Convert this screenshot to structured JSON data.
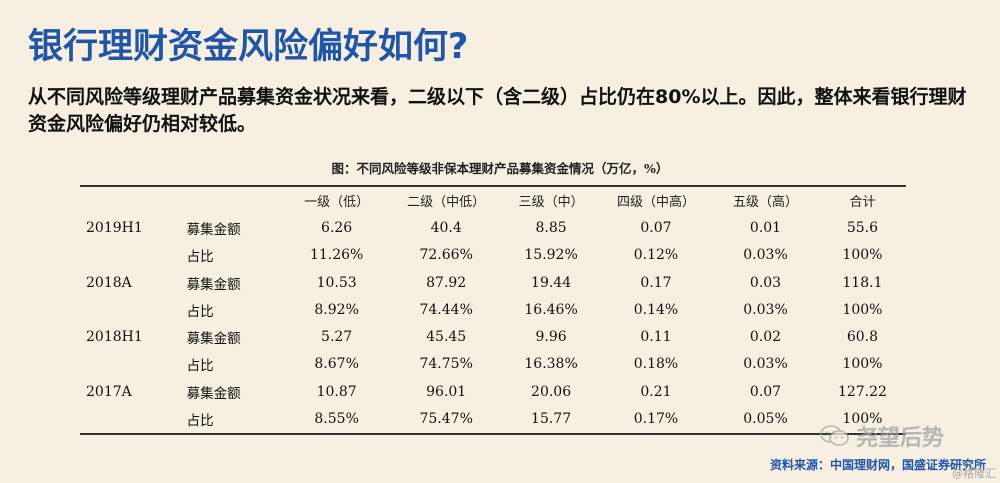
{
  "slide": {
    "title": "银行理财资金风险偏好如何?",
    "lead": "从不同风险等级理财产品募集资金状况来看，二级以下（含二级）占比仍在80%以上。因此，整体来看银行理财资金风险偏好仍相对较低。"
  },
  "table": {
    "caption": "图：不同风险等级非保本理财产品募集资金情况（万亿，%）",
    "headers": [
      "一级（低）",
      "二级（中低）",
      "三级（中）",
      "四级（中高）",
      "五级（高）",
      "合计"
    ],
    "groups": [
      {
        "period": "2019H1",
        "rows": [
          {
            "metric": "募集金额",
            "values": [
              "6.26",
              "40.4",
              "8.85",
              "0.07",
              "0.01",
              "55.6"
            ]
          },
          {
            "metric": "占比",
            "values": [
              "11.26%",
              "72.66%",
              "15.92%",
              "0.12%",
              "0.03%",
              "100%"
            ]
          }
        ]
      },
      {
        "period": "2018A",
        "rows": [
          {
            "metric": "募集金额",
            "values": [
              "10.53",
              "87.92",
              "19.44",
              "0.17",
              "0.03",
              "118.1"
            ]
          },
          {
            "metric": "占比",
            "values": [
              "8.92%",
              "74.44%",
              "16.46%",
              "0.14%",
              "0.03%",
              "100%"
            ]
          }
        ]
      },
      {
        "period": "2018H1",
        "rows": [
          {
            "metric": "募集金额",
            "values": [
              "5.27",
              "45.45",
              "9.96",
              "0.11",
              "0.02",
              "60.8"
            ]
          },
          {
            "metric": "占比",
            "values": [
              "8.67%",
              "74.75%",
              "16.38%",
              "0.18%",
              "0.03%",
              "100%"
            ]
          }
        ]
      },
      {
        "period": "2017A",
        "rows": [
          {
            "metric": "募集金额",
            "values": [
              "10.87",
              "96.01",
              "20.06",
              "0.21",
              "0.07",
              "127.22"
            ]
          },
          {
            "metric": "占比",
            "values": [
              "8.55%",
              "75.47%",
              "15.77",
              "0.17%",
              "0.05%",
              "100%"
            ]
          }
        ]
      }
    ]
  },
  "source": "资料来源：中国理财网，国盛证券研究所",
  "watermark": {
    "icon": "wechat-icon",
    "text": "尧望后势",
    "sub": "@格隆汇"
  },
  "colors": {
    "title": "#1f56a8",
    "background": "#f7efe1",
    "source": "#1f56a8"
  }
}
